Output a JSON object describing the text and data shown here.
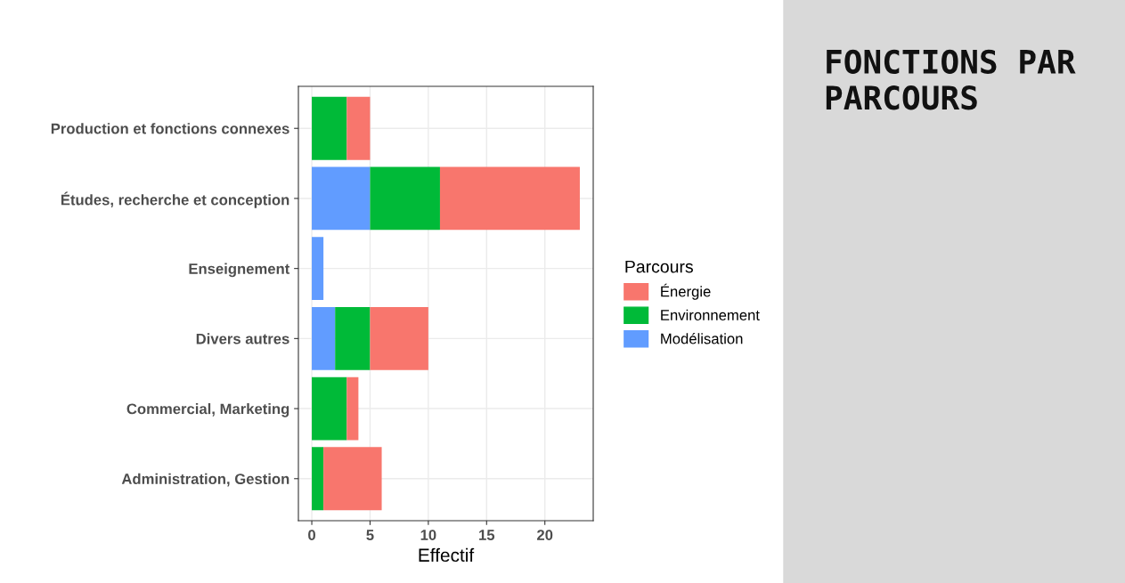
{
  "chart_data": {
    "type": "bar",
    "orientation": "horizontal",
    "stacked": true,
    "title": "FONCTIONS PAR PARCOURS",
    "xlabel": "Effectif",
    "legend_title": "Parcours",
    "categories": [
      "Production et fonctions connexes",
      "Études, recherche et conception",
      "Enseignement",
      "Divers autres",
      "Commercial, Marketing",
      "Administration, Gestion"
    ],
    "series": [
      {
        "name": "Modélisation",
        "color": "#619cff",
        "values": [
          0,
          5,
          1,
          2,
          0,
          0
        ]
      },
      {
        "name": "Environnement",
        "color": "#00ba38",
        "values": [
          3,
          6,
          0,
          3,
          3,
          1
        ]
      },
      {
        "name": "Énergie",
        "color": "#f8766d",
        "values": [
          2,
          12,
          0,
          5,
          1,
          5
        ]
      }
    ],
    "xlim": [
      -1.15,
      24.15
    ],
    "xticks": [
      0,
      5,
      10,
      15,
      20
    ],
    "grid": true,
    "legend": "right"
  }
}
